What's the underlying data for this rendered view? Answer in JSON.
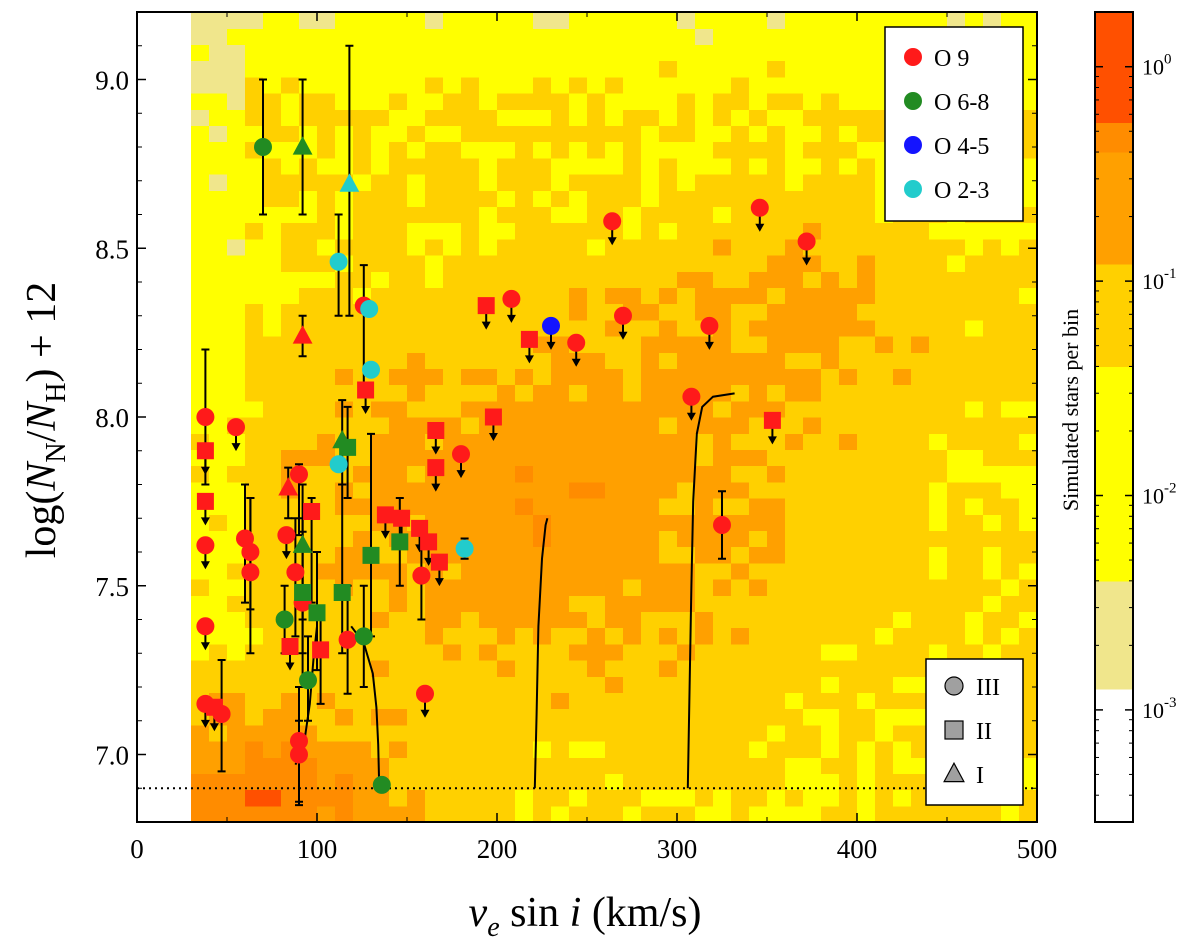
{
  "chart_data": {
    "type": "scatter",
    "title": "",
    "xlabel_parts": [
      "v",
      "e",
      " sin ",
      "i",
      " (km/s)"
    ],
    "ylabel_parts": [
      "log(",
      "N",
      "N",
      "/",
      "N",
      "H",
      ") + 12"
    ],
    "xlim": [
      0,
      500
    ],
    "ylim": [
      6.8,
      9.2
    ],
    "xticks": [
      0,
      100,
      200,
      300,
      400,
      500
    ],
    "xtick_labels": [
      "0",
      "100",
      "200",
      "300",
      "400",
      "500"
    ],
    "yticks": [
      7.0,
      7.5,
      8.0,
      8.5,
      9.0
    ],
    "ytick_labels": [
      "7.0",
      "7.5",
      "8.0",
      "8.5",
      "9.0"
    ],
    "detection_limit": 6.9,
    "colors": {
      "O 9": "#ff1a1a",
      "O 6-8": "#228b22",
      "O 4-5": "#1414ff",
      "O 2-3": "#22cccc",
      "marker_gray": "#a0a0a0",
      "bin_colors": [
        "#ffffff",
        "#f0e68c",
        "#ffff00",
        "#ffd000",
        "#ffa000",
        "#ff8c00",
        "#ff5000"
      ]
    },
    "legend_types": [
      "O 9",
      "O 6-8",
      "O 4-5",
      "O 2-3"
    ],
    "legend_types_position": "top-right",
    "legend_classes": [
      {
        "label": "III",
        "marker": "circle"
      },
      {
        "label": "II",
        "marker": "square"
      },
      {
        "label": "I",
        "marker": "triangle"
      }
    ],
    "legend_classes_position": "bottom-right",
    "colorbar": {
      "label": "Simulated stars per bin",
      "scale": "log",
      "range": [
        0.0003,
        1.8
      ],
      "boundaries": [
        0.0003,
        0.00125,
        0.004,
        0.0125,
        0.04,
        0.12,
        0.4,
        0.55,
        1.8
      ],
      "tick_values": [
        0.001,
        0.01,
        0.1,
        1
      ],
      "tick_labels": [
        {
          "base": "10",
          "exp": "-3"
        },
        {
          "base": "10",
          "exp": "-2"
        },
        {
          "base": "10",
          "exp": "-1"
        },
        {
          "base": "10",
          "exp": "0"
        }
      ]
    },
    "tracks": [
      [
        [
          88,
          6.97
        ],
        [
          90,
          6.99
        ],
        [
          93,
          7.04
        ],
        [
          96,
          7.15
        ],
        [
          98,
          7.28
        ],
        [
          100,
          7.38
        ]
      ],
      [
        [
          119,
          7.38
        ],
        [
          126,
          7.33
        ],
        [
          131,
          7.24
        ],
        [
          133,
          7.14
        ],
        [
          134,
          7.03
        ],
        [
          134.5,
          6.92
        ]
      ],
      [
        [
          221,
          6.9
        ],
        [
          222,
          7.12
        ],
        [
          223,
          7.38
        ],
        [
          225,
          7.58
        ],
        [
          227,
          7.68
        ],
        [
          228,
          7.7
        ]
      ],
      [
        [
          306,
          6.9
        ],
        [
          307,
          7.2
        ],
        [
          308,
          7.5
        ],
        [
          309,
          7.75
        ],
        [
          311,
          7.95
        ],
        [
          314,
          8.03
        ],
        [
          320,
          8.06
        ],
        [
          332,
          8.07
        ]
      ]
    ],
    "series": [
      {
        "name": "O 9",
        "points": [
          {
            "x": 38,
            "y": 8.0,
            "m": "circle",
            "err": [
              7.8,
              8.2
            ]
          },
          {
            "x": 38,
            "y": 7.62,
            "m": "circle",
            "ul": true
          },
          {
            "x": 38,
            "y": 7.38,
            "m": "circle",
            "ul": true
          },
          {
            "x": 38,
            "y": 7.15,
            "m": "circle",
            "ul": true
          },
          {
            "x": 55,
            "y": 7.97,
            "m": "circle",
            "ul": true
          },
          {
            "x": 60,
            "y": 7.64,
            "m": "circle",
            "err": [
              7.45,
              7.8
            ]
          },
          {
            "x": 63,
            "y": 7.6,
            "m": "circle",
            "err": [
              7.43,
              7.76
            ]
          },
          {
            "x": 63,
            "y": 7.54,
            "m": "circle",
            "err": [
              7.3,
              7.76
            ]
          },
          {
            "x": 47,
            "y": 7.12,
            "m": "circle",
            "err": [
              6.95,
              7.28
            ]
          },
          {
            "x": 83,
            "y": 7.65,
            "m": "circle",
            "ul": true
          },
          {
            "x": 88,
            "y": 7.54,
            "m": "circle",
            "err": [
              7.35,
              7.7
            ]
          },
          {
            "x": 90,
            "y": 7.83,
            "m": "circle",
            "err": [
              7.65,
              7.86
            ]
          },
          {
            "x": 92,
            "y": 7.45,
            "m": "circle",
            "err": [
              7.2,
              7.7
            ]
          },
          {
            "x": 90,
            "y": 7.04,
            "m": "circle",
            "err": [
              6.86,
              7.2
            ]
          },
          {
            "x": 90,
            "y": 7.0,
            "m": "circle",
            "err": [
              6.85,
              7.1
            ]
          },
          {
            "x": 117,
            "y": 7.34,
            "m": "circle",
            "err": [
              7.18,
              7.5
            ]
          },
          {
            "x": 126,
            "y": 8.33,
            "m": "circle",
            "err": [
              8.1,
              8.45
            ]
          },
          {
            "x": 160,
            "y": 7.18,
            "m": "circle",
            "ul": true
          },
          {
            "x": 158,
            "y": 7.53,
            "m": "circle",
            "err": [
              7.4,
              7.65
            ]
          },
          {
            "x": 180,
            "y": 7.89,
            "m": "circle",
            "ul": true
          },
          {
            "x": 208,
            "y": 8.35,
            "m": "circle",
            "ul": true
          },
          {
            "x": 244,
            "y": 8.22,
            "m": "circle",
            "ul": true
          },
          {
            "x": 264,
            "y": 8.58,
            "m": "circle",
            "ul": true
          },
          {
            "x": 270,
            "y": 8.3,
            "m": "circle",
            "ul": true
          },
          {
            "x": 308,
            "y": 8.06,
            "m": "circle",
            "ul": true
          },
          {
            "x": 318,
            "y": 8.27,
            "m": "circle",
            "ul": true
          },
          {
            "x": 325,
            "y": 7.68,
            "m": "circle",
            "err": [
              7.58,
              7.78
            ]
          },
          {
            "x": 346,
            "y": 8.62,
            "m": "circle",
            "ul": true
          },
          {
            "x": 372,
            "y": 8.52,
            "m": "circle",
            "ul": true
          },
          {
            "x": 38,
            "y": 7.9,
            "m": "square",
            "ul": true
          },
          {
            "x": 38,
            "y": 7.75,
            "m": "square",
            "ul": true
          },
          {
            "x": 43,
            "y": 7.14,
            "m": "square",
            "ul": true
          },
          {
            "x": 85,
            "y": 7.32,
            "m": "square",
            "ul": true
          },
          {
            "x": 97,
            "y": 7.72,
            "m": "square",
            "err": [
              7.45,
              7.76
            ]
          },
          {
            "x": 102,
            "y": 7.31,
            "m": "square",
            "err": [
              7.15,
              7.4
            ]
          },
          {
            "x": 127,
            "y": 8.08,
            "m": "square",
            "ul": true
          },
          {
            "x": 138,
            "y": 7.71,
            "m": "square",
            "ul": true
          },
          {
            "x": 147,
            "y": 7.7,
            "m": "square",
            "ul": true
          },
          {
            "x": 157,
            "y": 7.67,
            "m": "square",
            "ul": true
          },
          {
            "x": 162,
            "y": 7.63,
            "m": "square",
            "ul": true
          },
          {
            "x": 166,
            "y": 7.96,
            "m": "square",
            "ul": true
          },
          {
            "x": 166,
            "y": 7.85,
            "m": "square",
            "ul": true
          },
          {
            "x": 168,
            "y": 7.57,
            "m": "square",
            "ul": true
          },
          {
            "x": 194,
            "y": 8.33,
            "m": "square",
            "ul": true
          },
          {
            "x": 198,
            "y": 8.0,
            "m": "square",
            "ul": true
          },
          {
            "x": 218,
            "y": 8.23,
            "m": "square",
            "ul": true
          },
          {
            "x": 353,
            "y": 7.99,
            "m": "square",
            "ul": true
          },
          {
            "x": 84,
            "y": 7.79,
            "m": "triangle",
            "err": [
              7.7,
              7.85
            ]
          },
          {
            "x": 92,
            "y": 8.24,
            "m": "triangle",
            "err": [
              8.18,
              8.3
            ]
          }
        ]
      },
      {
        "name": "O 6-8",
        "points": [
          {
            "x": 70,
            "y": 8.8,
            "m": "circle",
            "err": [
              8.6,
              9.0
            ]
          },
          {
            "x": 82,
            "y": 7.4,
            "m": "circle",
            "err": [
              7.3,
              7.5
            ]
          },
          {
            "x": 95,
            "y": 7.22,
            "m": "circle",
            "err": [
              7.1,
              7.35
            ]
          },
          {
            "x": 126,
            "y": 7.35,
            "m": "circle",
            "err": [
              7.2,
              7.5
            ]
          },
          {
            "x": 136,
            "y": 6.91,
            "m": "circle"
          },
          {
            "x": 92,
            "y": 7.48,
            "m": "square",
            "err": [
              7.3,
              7.66
            ]
          },
          {
            "x": 100,
            "y": 7.42,
            "m": "square",
            "err": [
              7.25,
              7.6
            ]
          },
          {
            "x": 114,
            "y": 7.48,
            "m": "square",
            "err": [
              7.3,
              7.8
            ]
          },
          {
            "x": 117,
            "y": 7.91,
            "m": "square",
            "err": [
              7.76,
              8.03
            ]
          },
          {
            "x": 130,
            "y": 7.59,
            "m": "square",
            "err": [
              7.35,
              7.95
            ]
          },
          {
            "x": 146,
            "y": 7.63,
            "m": "square",
            "err": [
              7.5,
              7.76
            ]
          },
          {
            "x": 92,
            "y": 7.62,
            "m": "triangle",
            "err": [
              7.4,
              7.8
            ]
          },
          {
            "x": 92,
            "y": 8.8,
            "m": "triangle",
            "err": [
              8.6,
              9.0
            ]
          },
          {
            "x": 114,
            "y": 7.93,
            "m": "triangle",
            "err": [
              7.8,
              8.05
            ]
          }
        ]
      },
      {
        "name": "O 4-5",
        "points": [
          {
            "x": 230,
            "y": 8.27,
            "m": "circle",
            "ul": true
          }
        ]
      },
      {
        "name": "O 2-3",
        "points": [
          {
            "x": 112,
            "y": 8.46,
            "m": "circle",
            "err": [
              8.3,
              8.6
            ]
          },
          {
            "x": 129,
            "y": 8.32,
            "m": "circle"
          },
          {
            "x": 130,
            "y": 8.14,
            "m": "circle"
          },
          {
            "x": 112,
            "y": 7.86,
            "m": "circle"
          },
          {
            "x": 182,
            "y": 7.61,
            "m": "circle",
            "err": [
              7.58,
              7.64
            ]
          },
          {
            "x": 118,
            "y": 8.69,
            "m": "triangle",
            "err": [
              8.3,
              9.1
            ]
          }
        ]
      }
    ]
  }
}
